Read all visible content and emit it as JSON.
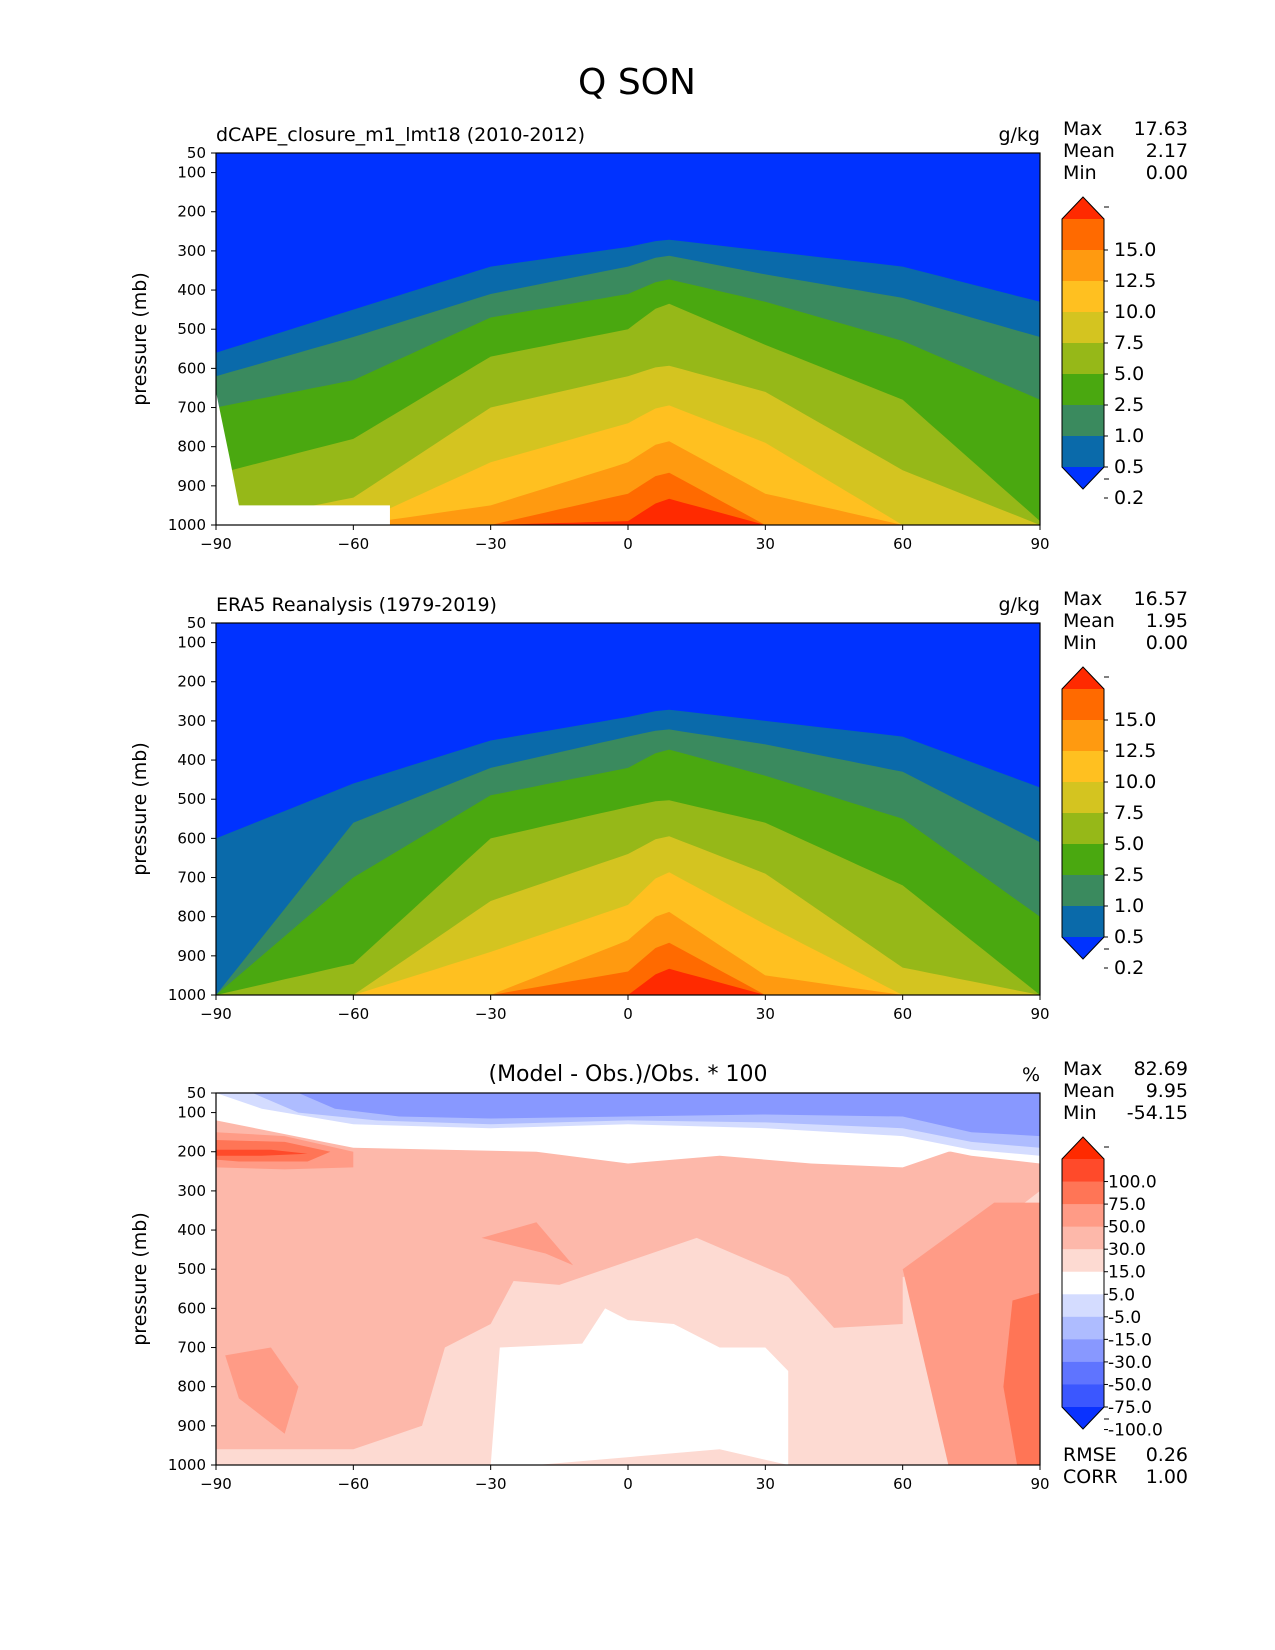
{
  "figure": {
    "title": "Q SON"
  },
  "chart_data": [
    {
      "type": "contour",
      "title": "dCAPE_closure_m1_lmt18 (2010-2012)",
      "units": "g/kg",
      "xlabel": "",
      "ylabel": "pressure (mb)",
      "xlim": [
        -90,
        90
      ],
      "ylim": [
        1000,
        50
      ],
      "xticks": [
        "−90",
        "−60",
        "−30",
        "0",
        "30",
        "60",
        "90"
      ],
      "yticks": [
        "50",
        "100",
        "200",
        "300",
        "400",
        "500",
        "600",
        "700",
        "800",
        "900",
        "1000"
      ],
      "stats": [
        {
          "label": "Max",
          "value": "17.63"
        },
        {
          "label": "Mean",
          "value": "2.17"
        },
        {
          "label": "Min",
          "value": "0.00"
        }
      ],
      "colorbar": {
        "labels": [
          "15.0",
          "12.5",
          "10.0",
          "7.5",
          "5.0",
          "2.5",
          "1.0",
          "0.5",
          "0.2"
        ],
        "colors": [
          "#ff2a00",
          "#ff6a00",
          "#ff9a10",
          "#ffc020",
          "#d4c420",
          "#96b818",
          "#4aa810",
          "#3a8a5e",
          "#0a6aaa",
          "#0032ff"
        ]
      },
      "levels": [
        0.2,
        0.5,
        1.0,
        2.5,
        5.0,
        7.5,
        10.0,
        12.5,
        15.0
      ],
      "field_x": [
        -90,
        -60,
        -30,
        0,
        8,
        30,
        60,
        90
      ],
      "field_profiles": [
        {
          "lat": -90,
          "p_at_level": [
            560,
            620,
            700,
            870,
            1000,
            1000,
            1000,
            1000,
            1000
          ]
        },
        {
          "lat": -60,
          "p_at_level": [
            450,
            520,
            630,
            780,
            930,
            1000,
            1000,
            1000,
            1000
          ]
        },
        {
          "lat": -30,
          "p_at_level": [
            340,
            410,
            470,
            570,
            700,
            840,
            950,
            1000,
            1000
          ]
        },
        {
          "lat": 0,
          "p_at_level": [
            290,
            340,
            410,
            500,
            620,
            740,
            840,
            920,
            990
          ]
        },
        {
          "lat": 8,
          "p_at_level": [
            270,
            310,
            370,
            430,
            590,
            690,
            780,
            860,
            930
          ]
        },
        {
          "lat": 30,
          "p_at_level": [
            300,
            360,
            430,
            540,
            660,
            790,
            920,
            1000,
            1000
          ]
        },
        {
          "lat": 60,
          "p_at_level": [
            340,
            420,
            530,
            680,
            860,
            1000,
            1000,
            1000,
            1000
          ]
        },
        {
          "lat": 90,
          "p_at_level": [
            430,
            520,
            680,
            990,
            1000,
            1000,
            1000,
            1000,
            1000
          ]
        }
      ],
      "masked_region": "below surface near Antarctica (about -88 to -52, 950-1000 mb)"
    },
    {
      "type": "contour",
      "title": "ERA5 Reanalysis (1979-2019)",
      "units": "g/kg",
      "xlabel": "",
      "ylabel": "pressure (mb)",
      "xlim": [
        -90,
        90
      ],
      "ylim": [
        1000,
        50
      ],
      "xticks": [
        "−90",
        "−60",
        "−30",
        "0",
        "30",
        "60",
        "90"
      ],
      "yticks": [
        "50",
        "100",
        "200",
        "300",
        "400",
        "500",
        "600",
        "700",
        "800",
        "900",
        "1000"
      ],
      "stats": [
        {
          "label": "Max",
          "value": "16.57"
        },
        {
          "label": "Mean",
          "value": "1.95"
        },
        {
          "label": "Min",
          "value": "0.00"
        }
      ],
      "colorbar": {
        "labels": [
          "15.0",
          "12.5",
          "10.0",
          "7.5",
          "5.0",
          "2.5",
          "1.0",
          "0.5",
          "0.2"
        ],
        "colors": [
          "#ff2a00",
          "#ff6a00",
          "#ff9a10",
          "#ffc020",
          "#d4c420",
          "#96b818",
          "#4aa810",
          "#3a8a5e",
          "#0a6aaa",
          "#0032ff"
        ]
      },
      "levels": [
        0.2,
        0.5,
        1.0,
        2.5,
        5.0,
        7.5,
        10.0,
        12.5,
        15.0
      ],
      "field_x": [
        -90,
        -60,
        -30,
        0,
        8,
        30,
        60,
        90
      ],
      "field_profiles": [
        {
          "lat": -90,
          "p_at_level": [
            600,
            1000,
            1000,
            1000,
            1000,
            1000,
            1000,
            1000,
            1000
          ]
        },
        {
          "lat": -60,
          "p_at_level": [
            460,
            560,
            700,
            920,
            1000,
            1000,
            1000,
            1000,
            1000
          ]
        },
        {
          "lat": -30,
          "p_at_level": [
            350,
            420,
            490,
            600,
            760,
            890,
            1000,
            1000,
            1000
          ]
        },
        {
          "lat": 0,
          "p_at_level": [
            290,
            340,
            420,
            520,
            640,
            770,
            860,
            940,
            1000
          ]
        },
        {
          "lat": 8,
          "p_at_level": [
            270,
            320,
            370,
            500,
            590,
            680,
            780,
            860,
            930
          ]
        },
        {
          "lat": 30,
          "p_at_level": [
            300,
            360,
            440,
            560,
            690,
            820,
            950,
            1000,
            1000
          ]
        },
        {
          "lat": 60,
          "p_at_level": [
            340,
            430,
            550,
            720,
            930,
            1000,
            1000,
            1000,
            1000
          ]
        },
        {
          "lat": 90,
          "p_at_level": [
            470,
            610,
            800,
            1000,
            1000,
            1000,
            1000,
            1000,
            1000
          ]
        }
      ]
    },
    {
      "type": "contour",
      "title": "(Model - Obs.)/Obs. * 100",
      "units": "%",
      "xlabel": "",
      "ylabel": "pressure (mb)",
      "xlim": [
        -90,
        90
      ],
      "ylim": [
        1000,
        50
      ],
      "xticks": [
        "−90",
        "−60",
        "−30",
        "0",
        "30",
        "60",
        "90"
      ],
      "yticks": [
        "50",
        "100",
        "200",
        "300",
        "400",
        "500",
        "600",
        "700",
        "800",
        "900",
        "1000"
      ],
      "stats": [
        {
          "label": "Max",
          "value": "82.69"
        },
        {
          "label": "Mean",
          "value": "9.95"
        },
        {
          "label": "Min",
          "value": "-54.15"
        }
      ],
      "extra_stats": [
        {
          "label": "RMSE",
          "value": "0.26"
        },
        {
          "label": "CORR",
          "value": "1.00"
        }
      ],
      "colorbar": {
        "labels": [
          "100.0",
          "75.0",
          "50.0",
          "30.0",
          "15.0",
          "5.0",
          "-5.0",
          "-15.0",
          "-30.0",
          "-50.0",
          "-75.0",
          "-100.0"
        ],
        "colors": [
          "#ff2a00",
          "#ff4a2a",
          "#ff7556",
          "#ff9b86",
          "#fdb8aa",
          "#fddad2",
          "#ffffff",
          "#d4dcff",
          "#aebcff",
          "#8898ff",
          "#5f74ff",
          "#3b57ff",
          "#0a32ff"
        ]
      },
      "regions": [
        {
          "value_range": "-50 to -30",
          "description": "stratosphere 50-150 mb, weaker over south pole"
        },
        {
          "value_range": "30 to 75",
          "description": "south polar 150-250 mb maximum"
        },
        {
          "value_range": "15 to 30",
          "description": "broad mid-troposphere band"
        },
        {
          "value_range": "-5 to 5",
          "description": "tropical lower troposphere 650-1000 mb"
        },
        {
          "value_range": "30 to 50",
          "description": "north polar lower troposphere"
        }
      ]
    }
  ]
}
